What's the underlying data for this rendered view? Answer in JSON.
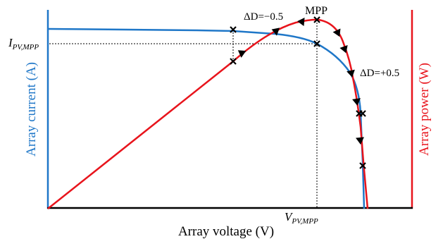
{
  "colors": {
    "current_curve": "#1f77c8",
    "power_curve": "#e8141c",
    "axis_left": "#1f77c8",
    "axis_right": "#e8141c",
    "axis_bottom": "#000000",
    "markers": "#000000"
  },
  "labels": {
    "y_left": "Array current (A)",
    "y_right": "Array power (W)",
    "x": "Array voltage (V)",
    "mpp": "MPP",
    "delta_neg": "ΔD=−0.5",
    "delta_pos": "ΔD=+0.5",
    "i_pv_mpp_main": "I",
    "i_pv_mpp_sub": "PV,MPP",
    "v_pv_mpp_main": "V",
    "v_pv_mpp_sub": "PV,MPP"
  }
}
